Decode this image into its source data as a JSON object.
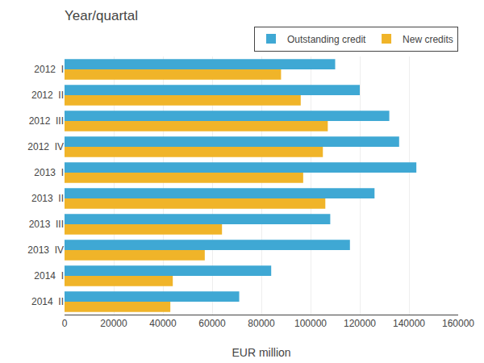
{
  "chart_data": {
    "type": "bar",
    "orientation": "horizontal",
    "title": "Year/quartal",
    "xlabel": "EUR million",
    "categories": [
      "2012  I",
      "2012  II",
      "2012  III",
      "2012  IV",
      "2013  I",
      "2013  II",
      "2013  III",
      "2013  IV",
      "2014  I",
      "2014  II"
    ],
    "series": [
      {
        "name": "Outstanding credit",
        "color": "#3fa8d4",
        "values": [
          110000,
          120000,
          132000,
          136000,
          143000,
          126000,
          108000,
          116000,
          84000,
          71000
        ]
      },
      {
        "name": "New credits",
        "color": "#f0b429",
        "values": [
          88000,
          96000,
          107000,
          105000,
          97000,
          106000,
          64000,
          57000,
          44000,
          43000
        ]
      }
    ],
    "xlim": [
      0,
      160000
    ],
    "xticks": [
      0,
      20000,
      40000,
      60000,
      80000,
      100000,
      120000,
      140000,
      160000
    ],
    "grid": true,
    "legend": "upper right"
  }
}
